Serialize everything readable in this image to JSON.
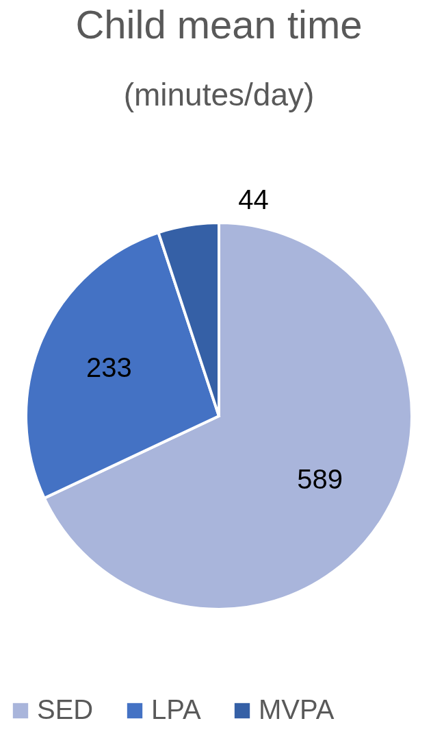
{
  "chart_data": {
    "type": "pie",
    "title": "Child mean time",
    "subtitle": "(minutes/day)",
    "categories": [
      "SED",
      "LPA",
      "MVPA"
    ],
    "values": [
      589,
      233,
      44
    ],
    "colors": [
      "#a9b5db",
      "#4472c4",
      "#3560a6"
    ],
    "data_labels": true,
    "legend": "bottom"
  }
}
